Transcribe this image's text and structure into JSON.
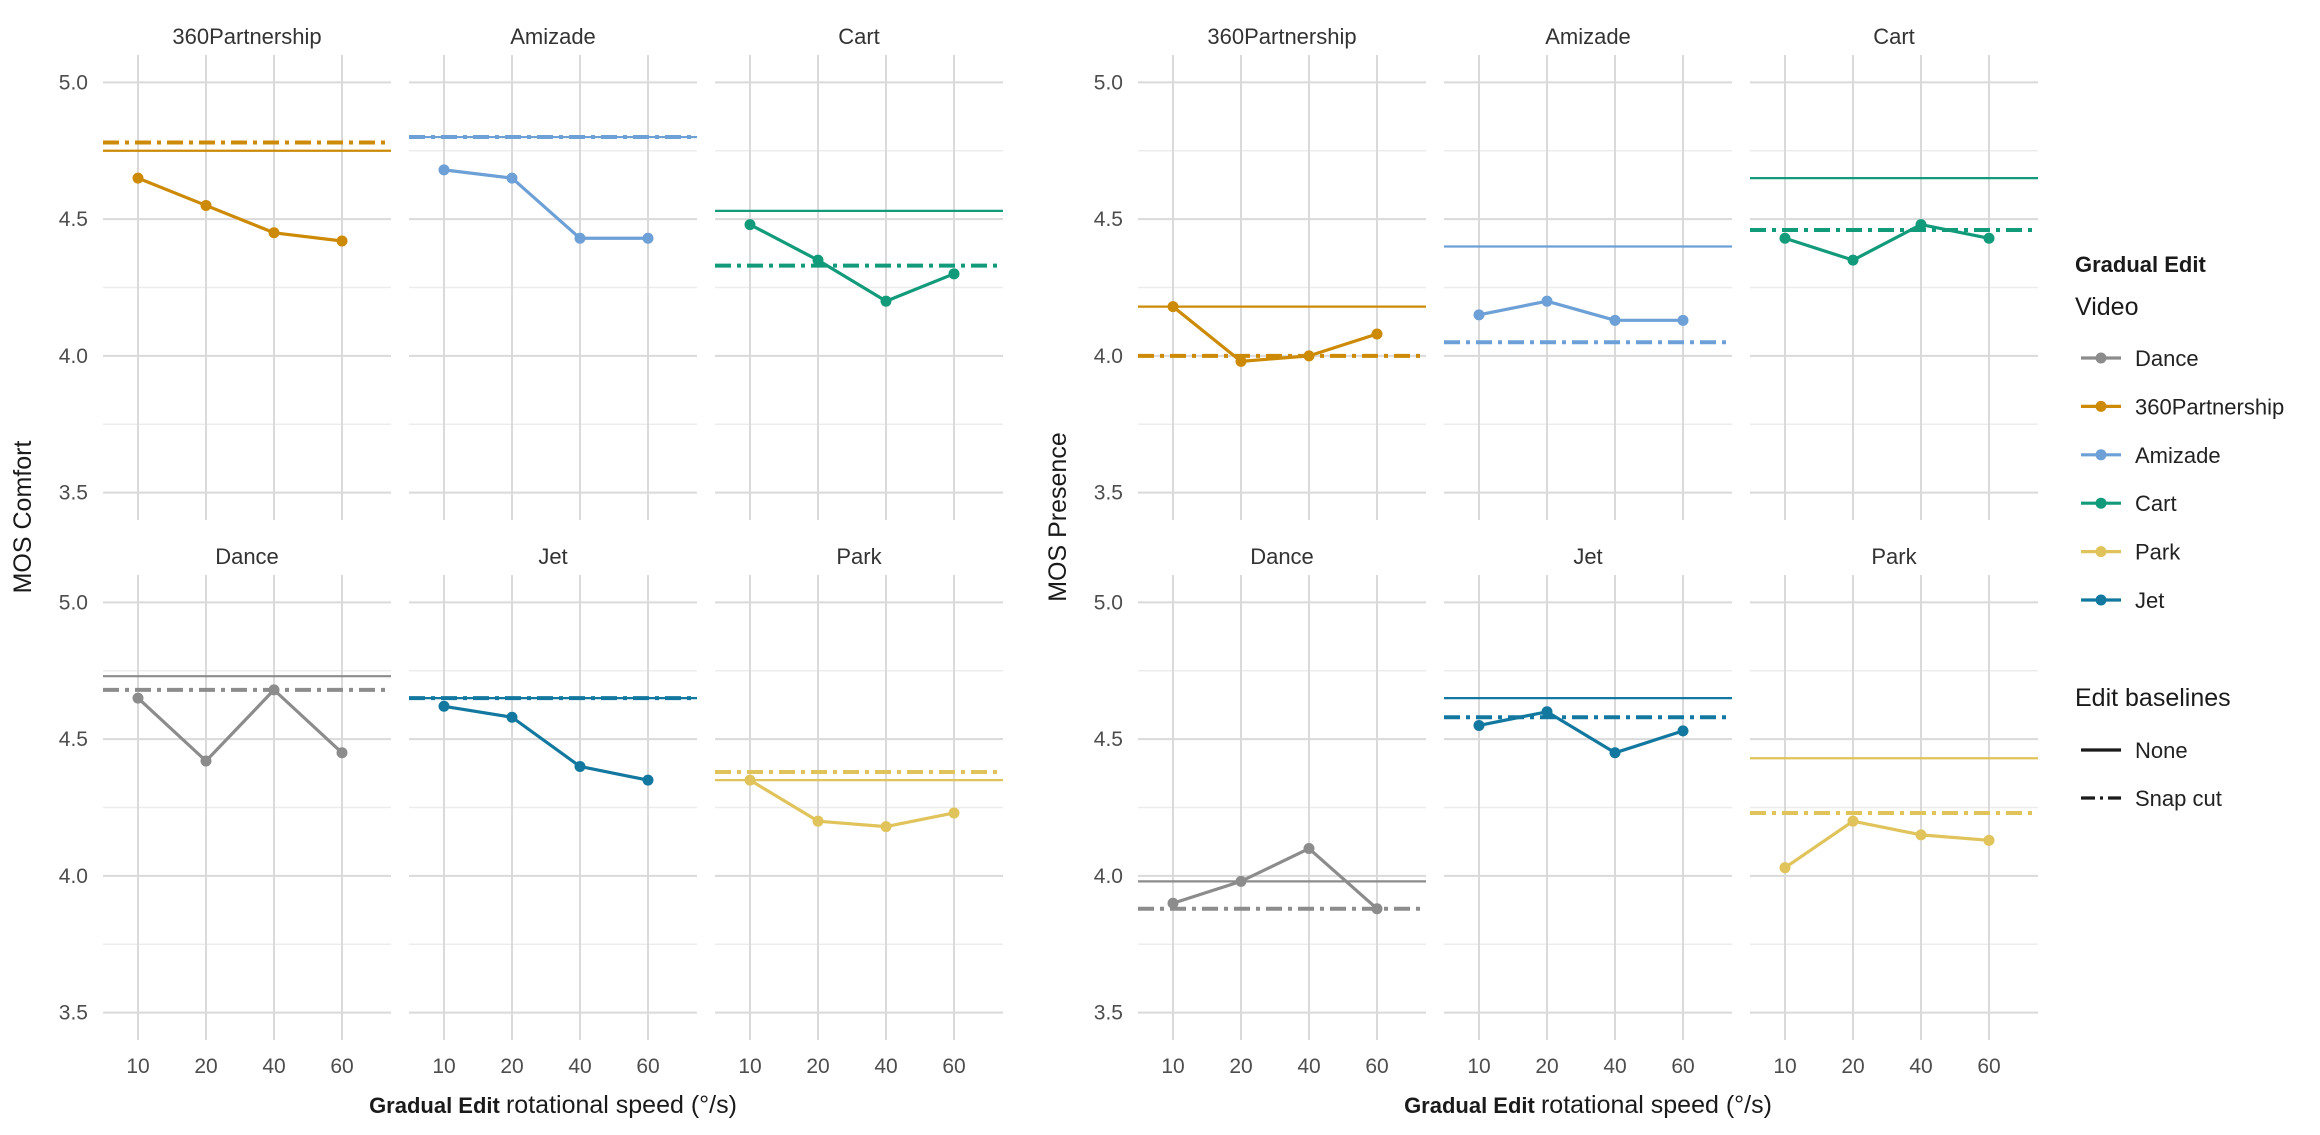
{
  "chart_data": {
    "type": "line",
    "x": [
      10,
      20,
      40,
      60
    ],
    "xlabel_prefix": "Gradual Edit",
    "xlabel_main": "rotational speed (°/s)",
    "yticks": [
      "5.0",
      "4.5",
      "4.0",
      "3.5"
    ],
    "ylim": [
      3.4,
      5.1
    ],
    "video_colors": {
      "Dance": "#8c8c8c",
      "360Partnership": "#cc8a06",
      "Amizade": "#6ca0d6",
      "Cart": "#129b7b",
      "Park": "#e0c35a",
      "Jet": "#13789f"
    },
    "legend": {
      "title_bold": "Gradual Edit",
      "title_video": "Video",
      "videos": [
        "Dance",
        "360Partnership",
        "Amizade",
        "Cart",
        "Park",
        "Jet"
      ],
      "baseline_title": "Edit baselines",
      "baselines": [
        "None",
        "Snap cut"
      ]
    },
    "plots": [
      {
        "ylabel": "MOS Comfort",
        "facets": [
          {
            "name": "360Partnership",
            "values": [
              4.65,
              4.55,
              4.45,
              4.42
            ],
            "none": 4.75,
            "snap": 4.78
          },
          {
            "name": "Amizade",
            "values": [
              4.68,
              4.65,
              4.43,
              4.43
            ],
            "none": 4.8,
            "snap": 4.8
          },
          {
            "name": "Cart",
            "values": [
              4.48,
              4.35,
              4.2,
              4.3
            ],
            "none": 4.53,
            "snap": 4.33
          },
          {
            "name": "Dance",
            "values": [
              4.65,
              4.42,
              4.68,
              4.45
            ],
            "none": 4.73,
            "snap": 4.68
          },
          {
            "name": "Jet",
            "values": [
              4.62,
              4.58,
              4.4,
              4.35
            ],
            "none": 4.65,
            "snap": 4.65
          },
          {
            "name": "Park",
            "values": [
              4.35,
              4.2,
              4.18,
              4.23
            ],
            "none": 4.35,
            "snap": 4.38
          }
        ]
      },
      {
        "ylabel": "MOS Presence",
        "facets": [
          {
            "name": "360Partnership",
            "values": [
              4.18,
              3.98,
              4.0,
              4.08
            ],
            "none": 4.18,
            "snap": 4.0
          },
          {
            "name": "Amizade",
            "values": [
              4.15,
              4.2,
              4.13,
              4.13
            ],
            "none": 4.4,
            "snap": 4.05
          },
          {
            "name": "Cart",
            "values": [
              4.43,
              4.35,
              4.48,
              4.43
            ],
            "none": 4.65,
            "snap": 4.46
          },
          {
            "name": "Dance",
            "values": [
              3.9,
              3.98,
              4.1,
              3.88
            ],
            "none": 3.98,
            "snap": 3.88
          },
          {
            "name": "Jet",
            "values": [
              4.55,
              4.6,
              4.45,
              4.53
            ],
            "none": 4.65,
            "snap": 4.58
          },
          {
            "name": "Park",
            "values": [
              4.03,
              4.2,
              4.15,
              4.13
            ],
            "none": 4.43,
            "snap": 4.23
          }
        ]
      }
    ]
  }
}
